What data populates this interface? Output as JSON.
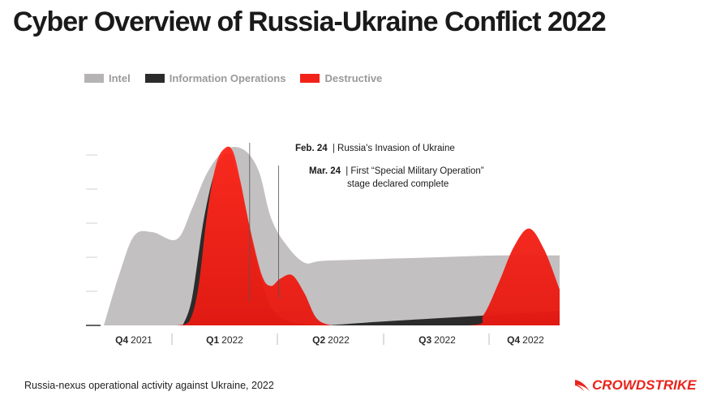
{
  "title": "Cyber Overview of Russia-Ukraine Conflict 2022",
  "caption": "Russia-nexus operational activity against Ukraine, 2022",
  "logo": {
    "text": "CROWDSTRIKE",
    "icon": "falcon-icon"
  },
  "colors": {
    "intel": "#c2c0c1",
    "information_operations": "#2b2b2b",
    "destructive": "#f2221a"
  },
  "legend": [
    {
      "label": "Intel",
      "color": "#b5b3b4"
    },
    {
      "label": "Information Operations",
      "color": "#2b2b2b"
    },
    {
      "label": "Destructive",
      "color": "#f2221a"
    }
  ],
  "annotations": [
    {
      "date": "Feb. 24",
      "text": "| Russia's Invasion of Ukraine",
      "extra": ""
    },
    {
      "date": "Mar. 24",
      "text": "| First “Special Military Operation”",
      "extra": "stage declared complete"
    }
  ],
  "chart_data": {
    "type": "area",
    "ylim": [
      0,
      1
    ],
    "yaxis_ticks_labeled": false,
    "x_tick_labels": [
      {
        "bold": "Q4",
        "rest": "2021"
      },
      {
        "bold": "Q1",
        "rest": "2022"
      },
      {
        "bold": "Q2",
        "rest": "2022"
      },
      {
        "bold": "Q3",
        "rest": "2022"
      },
      {
        "bold": "Q4",
        "rest": "2022"
      }
    ],
    "x_note": "x is months since Oct 1, 2021 (0 = start of Q4 2021)",
    "series": [
      {
        "name": "Intel",
        "x": [
          0,
          0.5,
          1.0,
          1.6,
          2.4,
          2.9,
          3.4,
          4.0,
          4.6,
          5.1,
          5.5,
          6.0,
          6.6,
          7.2,
          9.0,
          11.0,
          13.0,
          15.0
        ],
        "values": [
          0,
          0.28,
          0.5,
          0.52,
          0.48,
          0.65,
          0.85,
          0.98,
          0.98,
          0.86,
          0.6,
          0.45,
          0.35,
          0.36,
          0.37,
          0.38,
          0.39,
          0.39
        ]
      },
      {
        "name": "Information Operations",
        "x": [
          2.6,
          2.9,
          3.3,
          3.7,
          4.1,
          4.4,
          5.5,
          7.0,
          9.0,
          11.0,
          13.0,
          15.0
        ],
        "values": [
          0,
          0.15,
          0.6,
          0.88,
          0.96,
          0.85,
          0.1,
          0.0,
          0.02,
          0.04,
          0.06,
          0.08
        ]
      },
      {
        "name": "Destructive",
        "x": [
          2.4,
          2.8,
          3.1,
          3.4,
          3.7,
          4.0,
          4.25,
          4.5,
          4.8,
          5.2,
          5.5,
          5.8,
          6.2,
          6.6,
          7.0,
          7.5,
          8.0,
          12.0,
          12.5,
          13.0,
          13.5,
          14.0,
          14.5,
          15.0
        ],
        "values": [
          0,
          0.02,
          0.2,
          0.62,
          0.9,
          0.99,
          0.97,
          0.8,
          0.55,
          0.28,
          0.22,
          0.26,
          0.28,
          0.18,
          0.04,
          0.0,
          0.0,
          0.0,
          0.06,
          0.24,
          0.44,
          0.54,
          0.42,
          0.2
        ]
      }
    ],
    "events": [
      {
        "label": "Feb. 24",
        "x": 4.8
      },
      {
        "label": "Mar. 24",
        "x": 5.75
      }
    ]
  }
}
